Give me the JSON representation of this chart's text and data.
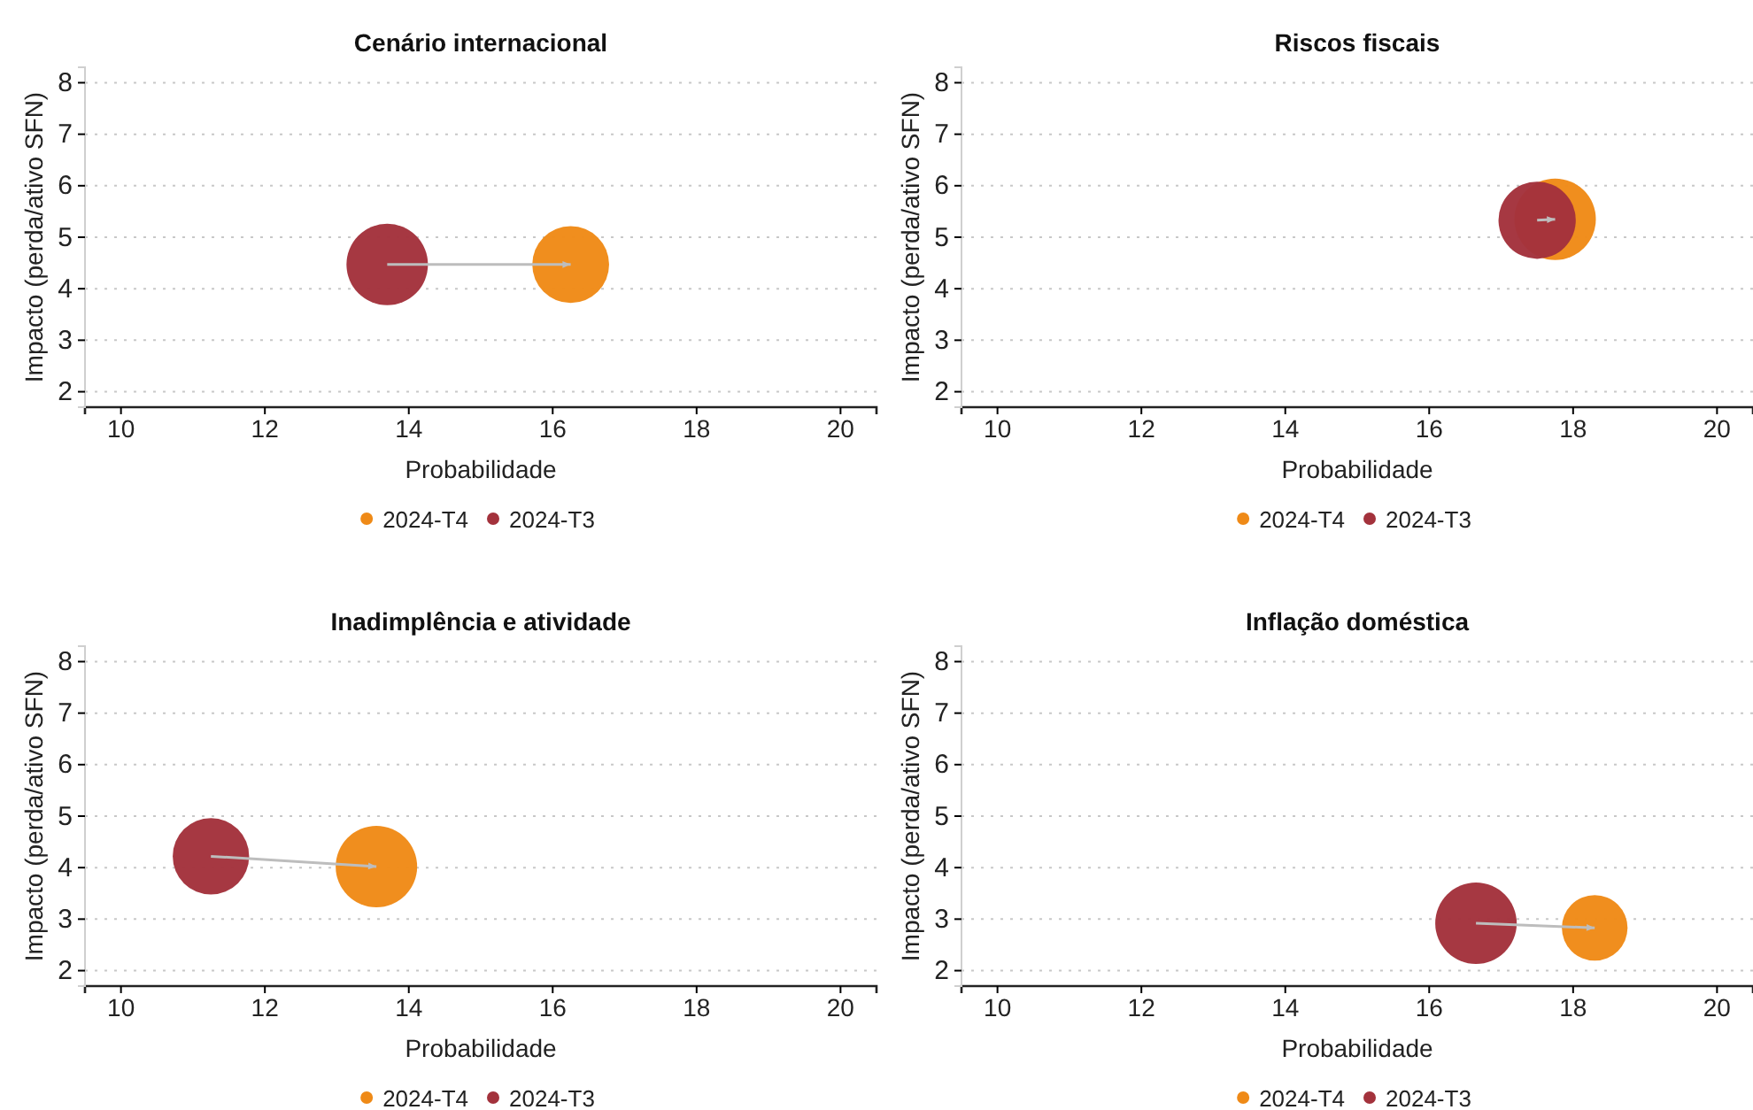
{
  "chart_data": [
    {
      "type": "bubble",
      "title": "Cenário internacional",
      "xlabel": "Probabilidade",
      "ylabel": "Impacto (perda/ativo SFN)",
      "xlim": [
        9.5,
        20.5
      ],
      "xticks": [
        10,
        12,
        14,
        16,
        18,
        20
      ],
      "ylim": [
        1.7,
        8.3
      ],
      "yticks": [
        2,
        3,
        4,
        5,
        6,
        7,
        8
      ],
      "grid": "y",
      "legend": "bottom",
      "marker": "circle",
      "series": [
        {
          "name": "2024-T4",
          "color": "#ef8a17",
          "x": [
            16.25
          ],
          "values": [
            4.47
          ],
          "sizes": [
            0.89
          ]
        },
        {
          "name": "2024-T3",
          "color": "#a3323c",
          "x": [
            13.7
          ],
          "values": [
            4.47
          ],
          "sizes": [
            1
          ]
        }
      ]
    },
    {
      "type": "bubble",
      "title": "Riscos fiscais",
      "xlabel": "Probabilidade",
      "ylabel": "Impacto (perda/ativo SFN)",
      "xlim": [
        9.5,
        20.5
      ],
      "xticks": [
        10,
        12,
        14,
        16,
        18,
        20
      ],
      "ylim": [
        1.7,
        8.3
      ],
      "yticks": [
        2,
        3,
        4,
        5,
        6,
        7,
        8
      ],
      "grid": "y",
      "legend": "bottom",
      "marker": "circle",
      "series": [
        {
          "name": "2024-T4",
          "color": "#ef8a17",
          "x": [
            17.75
          ],
          "values": [
            5.35
          ],
          "sizes": [
            1
          ]
        },
        {
          "name": "2024-T3",
          "color": "#a3323c",
          "x": [
            17.5
          ],
          "values": [
            5.33
          ],
          "sizes": [
            0.9
          ]
        }
      ]
    },
    {
      "type": "bubble",
      "title": "Inadimplência e atividade",
      "xlabel": "Probabilidade",
      "ylabel": "Impacto (perda/ativo SFN)",
      "xlim": [
        9.5,
        20.5
      ],
      "xticks": [
        10,
        12,
        14,
        16,
        18,
        20
      ],
      "ylim": [
        1.7,
        8.3
      ],
      "yticks": [
        2,
        3,
        4,
        5,
        6,
        7,
        8
      ],
      "grid": "y",
      "legend": "bottom",
      "marker": "circle",
      "series": [
        {
          "name": "2024-T4",
          "color": "#ef8a17",
          "x": [
            13.55
          ],
          "values": [
            4.02
          ],
          "sizes": [
            1
          ]
        },
        {
          "name": "2024-T3",
          "color": "#a3323c",
          "x": [
            11.25
          ],
          "values": [
            4.22
          ],
          "sizes": [
            0.88
          ]
        }
      ]
    },
    {
      "type": "bubble",
      "title": "Inflação doméstica",
      "xlabel": "Probabilidade",
      "ylabel": "Impacto (perda/ativo SFN)",
      "xlim": [
        9.5,
        20.5
      ],
      "xticks": [
        10,
        12,
        14,
        16,
        18,
        20
      ],
      "ylim": [
        1.7,
        8.3
      ],
      "yticks": [
        2,
        3,
        4,
        5,
        6,
        7,
        8
      ],
      "grid": "y",
      "legend": "bottom",
      "marker": "circle",
      "series": [
        {
          "name": "2024-T4",
          "color": "#ef8a17",
          "x": [
            18.3
          ],
          "values": [
            2.83
          ],
          "sizes": [
            0.65
          ]
        },
        {
          "name": "2024-T3",
          "color": "#a3323c",
          "x": [
            16.65
          ],
          "values": [
            2.92
          ],
          "sizes": [
            1
          ]
        }
      ]
    }
  ]
}
